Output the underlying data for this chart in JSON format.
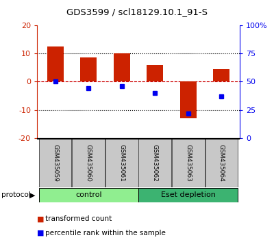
{
  "title": "GDS3599 / scl18129.10.1_91-S",
  "samples": [
    "GSM435059",
    "GSM435060",
    "GSM435061",
    "GSM435062",
    "GSM435063",
    "GSM435064"
  ],
  "red_values": [
    12.5,
    8.5,
    10.0,
    6.0,
    -13.0,
    4.5
  ],
  "blue_values": [
    50,
    44,
    46,
    40,
    22,
    37
  ],
  "ylim_left": [
    -20,
    20
  ],
  "ylim_right": [
    0,
    100
  ],
  "yticks_left": [
    -20,
    -10,
    0,
    10,
    20
  ],
  "yticks_right": [
    0,
    25,
    50,
    75,
    100
  ],
  "ytick_labels_right": [
    "0",
    "25",
    "50",
    "75",
    "100%"
  ],
  "ytick_labels_left": [
    "-20",
    "-10",
    "0",
    "10",
    "20"
  ],
  "groups": [
    {
      "label": "control",
      "indices": [
        0,
        1,
        2
      ],
      "color": "#90EE90"
    },
    {
      "label": "Eset depletion",
      "indices": [
        3,
        4,
        5
      ],
      "color": "#3CB371"
    }
  ],
  "red_color": "#CC2200",
  "blue_color": "#0000EE",
  "bar_width": 0.5,
  "dotted_line_color": "#000000",
  "zero_line_color": "#CC0000",
  "protocol_label": "protocol",
  "legend_red": "transformed count",
  "legend_blue": "percentile rank within the sample",
  "sample_box_color": "#C8C8C8",
  "sample_box_edge": "#888888"
}
